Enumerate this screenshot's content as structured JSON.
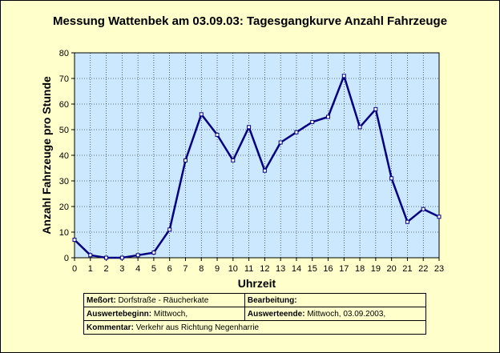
{
  "chart_data": {
    "type": "line",
    "title": "Messung Wattenbek am 03.09.03: Tagesgangkurve Anzahl Fahrzeuge",
    "xlabel": "Uhrzeit",
    "ylabel": "Anzahl Fahrzeuge pro Stunde",
    "x": [
      0,
      1,
      2,
      3,
      4,
      5,
      6,
      7,
      8,
      9,
      10,
      11,
      12,
      13,
      14,
      15,
      16,
      17,
      18,
      19,
      20,
      21,
      22,
      23
    ],
    "series": [
      {
        "values": [
          7,
          1,
          0,
          0,
          1,
          2,
          11,
          38,
          56,
          48,
          38,
          51,
          34,
          45,
          49,
          53,
          55,
          71,
          51,
          58,
          31,
          14,
          19,
          16
        ]
      }
    ],
    "xlim": [
      0,
      23
    ],
    "ylim": [
      0,
      80
    ],
    "yticks": [
      0,
      10,
      20,
      30,
      40,
      50,
      60,
      70,
      80
    ],
    "grid": true,
    "colors": {
      "line": "#000080",
      "plot_bg": "#cce8ff",
      "grid": "#000000",
      "page_bg": "#ffffcc"
    }
  },
  "info": {
    "messort_label": "Meßort:",
    "messort_value": "Dorfstraße - Räucherkate",
    "bearbeitung_label": "Bearbeitung:",
    "bearbeitung_value": "",
    "beginn_label": "Auswertebeginn:",
    "beginn_value": "Mittwoch,",
    "ende_label": "Auswerteende:",
    "ende_value": "Mittwoch, 03.09.2003,",
    "kommentar_label": "Kommentar:",
    "kommentar_value": "Verkehr aus Richtung Negenharrie"
  }
}
